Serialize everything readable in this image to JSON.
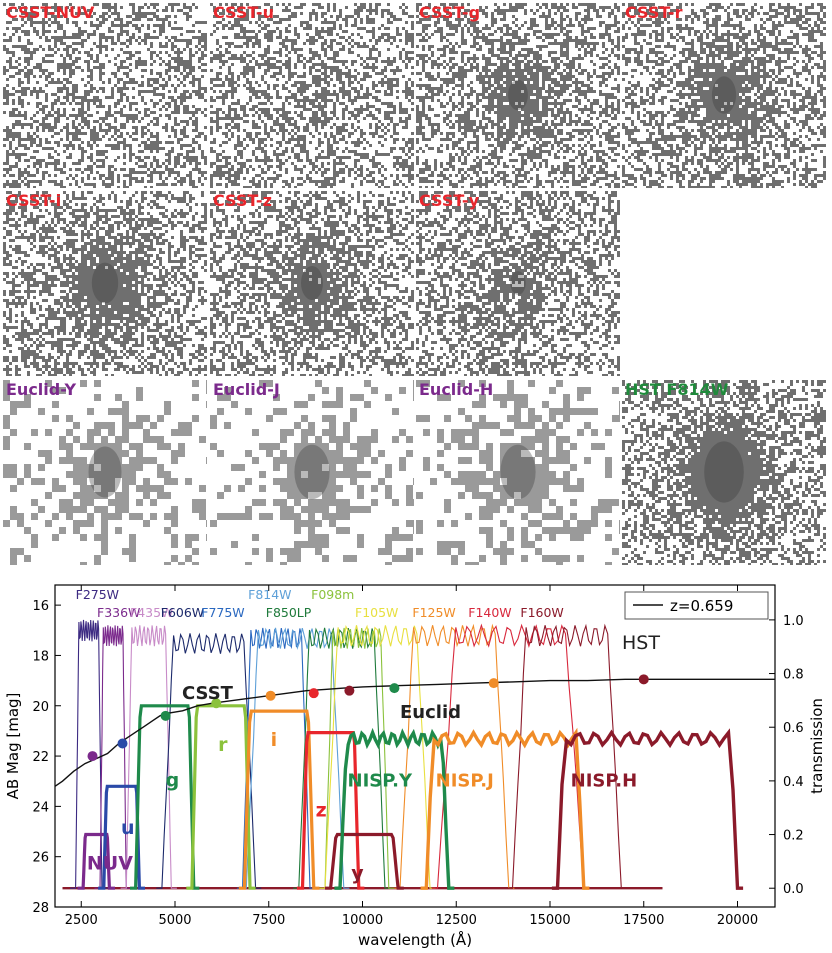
{
  "panels": [
    {
      "label": "CSST-NUV",
      "color": "#e8262c",
      "galaxy": 0.06,
      "blocky": false
    },
    {
      "label": "CSST-u",
      "color": "#e8262c",
      "galaxy": 0.12,
      "blocky": false
    },
    {
      "label": "CSST-g",
      "color": "#e8262c",
      "galaxy": 0.45,
      "blocky": false
    },
    {
      "label": "CSST-r",
      "color": "#e8262c",
      "galaxy": 0.55,
      "blocky": false
    },
    {
      "label": "CSST-i",
      "color": "#e8262c",
      "galaxy": 0.6,
      "blocky": false
    },
    {
      "label": "CSST-z",
      "color": "#e8262c",
      "galaxy": 0.5,
      "blocky": false
    },
    {
      "label": "CSST-y",
      "color": "#e8262c",
      "galaxy": 0.35,
      "blocky": false
    },
    {
      "label": "Euclid-Y",
      "color": "#7b2a8c",
      "galaxy": 0.75,
      "blocky": true
    },
    {
      "label": "Euclid-J",
      "color": "#7b2a8c",
      "galaxy": 0.8,
      "blocky": true
    },
    {
      "label": "Euclid-H",
      "color": "#7b2a8c",
      "galaxy": 0.8,
      "blocky": true
    },
    {
      "label": "HST F814W",
      "color": "#1f8a3b",
      "galaxy": 0.9,
      "blocky": false
    }
  ],
  "chart_data": {
    "type": "line",
    "xlabel": "wavelength (Å)",
    "ylabel": "AB Mag [mag]",
    "ylabel_right": "transmission",
    "xlim": [
      1800,
      21000
    ],
    "ylim": [
      28,
      15.2
    ],
    "ylim_right": [
      -0.07,
      1.13
    ],
    "x_ticks": [
      2500,
      5000,
      7500,
      10000,
      12500,
      15000,
      17500,
      20000
    ],
    "y_ticks": [
      16,
      18,
      20,
      22,
      24,
      26,
      28
    ],
    "y_ticks_right": [
      0.0,
      0.2,
      0.4,
      0.6,
      0.8,
      1.0
    ],
    "legend": {
      "label": "z=0.659",
      "position": "top-right"
    },
    "sed": {
      "name": "z=0.659",
      "color": "#111111",
      "x": [
        1800,
        2000,
        2300,
        2600,
        2900,
        3200,
        3500,
        3800,
        4000,
        4200,
        4400,
        4600,
        4800,
        5200,
        5600,
        6000,
        6500,
        7000,
        7500,
        8000,
        8500,
        9000,
        9500,
        10000,
        11000,
        12000,
        13000,
        14000,
        15000,
        16000,
        17000,
        18000,
        19000,
        20000,
        21000
      ],
      "y": [
        23.2,
        23.0,
        22.6,
        22.3,
        22.1,
        21.9,
        21.5,
        21.2,
        21.0,
        20.8,
        20.6,
        20.4,
        20.3,
        20.2,
        20.0,
        19.9,
        19.8,
        19.7,
        19.6,
        19.5,
        19.4,
        19.35,
        19.3,
        19.25,
        19.2,
        19.15,
        19.1,
        19.05,
        19.0,
        19.0,
        18.95,
        18.95,
        18.95,
        18.95,
        18.95
      ]
    },
    "hst_filters": [
      {
        "name": "F275W",
        "color": "#3c2a82",
        "range": [
          2350,
          3050
        ],
        "peak": 1.0
      },
      {
        "name": "F336W",
        "color": "#7b2a8c",
        "range": [
          3000,
          3700
        ],
        "peak": 0.98
      },
      {
        "name": "F435W",
        "color": "#c88bc8",
        "range": [
          3700,
          4900
        ],
        "peak": 0.98
      },
      {
        "name": "F606W",
        "color": "#1c2a6b",
        "range": [
          4650,
          7150
        ],
        "peak": 0.95
      },
      {
        "name": "F775W",
        "color": "#2a68c0",
        "range": [
          6800,
          8600
        ],
        "peak": 0.97
      },
      {
        "name": "F814W",
        "color": "#5ea0d8",
        "range": [
          6900,
          9500
        ],
        "peak": 0.97
      },
      {
        "name": "F850LP",
        "color": "#1f7a3b",
        "range": [
          8300,
          10600
        ],
        "peak": 0.97
      },
      {
        "name": "F098m",
        "color": "#8bc23c",
        "range": [
          9000,
          10700
        ],
        "peak": 0.97
      },
      {
        "name": "F105W",
        "color": "#e8e040",
        "range": [
          9000,
          11800
        ],
        "peak": 0.98
      },
      {
        "name": "F125W",
        "color": "#f08c28",
        "range": [
          11000,
          13900
        ],
        "peak": 0.98
      },
      {
        "name": "F140W",
        "color": "#d8283c",
        "range": [
          12000,
          15900
        ],
        "peak": 0.98
      },
      {
        "name": "F160W",
        "color": "#8b1a2a",
        "range": [
          14000,
          16900
        ],
        "peak": 0.98
      }
    ],
    "hst_label": "HST",
    "csst_label": "CSST",
    "euclid_label": "Euclid",
    "csst_filters": [
      {
        "name": "NUV",
        "color": "#7b2a8c",
        "range": [
          2550,
          3250
        ],
        "peak": 0.2,
        "label_x": 2650,
        "label_y": 26.5
      },
      {
        "name": "u",
        "color": "#2a4aa8",
        "range": [
          3100,
          4050
        ],
        "peak": 0.38,
        "label_x": 3560,
        "label_y": 25.1
      },
      {
        "name": "g",
        "color": "#1f8a4b",
        "range": [
          3950,
          5500
        ],
        "peak": 0.68,
        "label_x": 4750,
        "label_y": 23.2
      },
      {
        "name": "r",
        "color": "#8bc23c",
        "range": [
          5450,
          7000
        ],
        "peak": 0.68,
        "label_x": 6150,
        "label_y": 21.8
      },
      {
        "name": "i",
        "color": "#f08c28",
        "range": [
          6850,
          8700
        ],
        "peak": 0.66,
        "label_x": 7550,
        "label_y": 21.6
      },
      {
        "name": "z",
        "color": "#e8262c",
        "range": [
          8400,
          9900
        ],
        "peak": 0.58,
        "label_x": 8750,
        "label_y": 24.4
      },
      {
        "name": "y",
        "color": "#8b1a2a",
        "range": [
          9150,
          10950
        ],
        "peak": 0.2,
        "label_x": 9700,
        "label_y": 26.9
      }
    ],
    "nisp_filters": [
      {
        "name": "NISP.Y",
        "color": "#1f8a4b",
        "range": [
          9400,
          12300
        ],
        "peak": 0.58,
        "label_x": 9600,
        "label_y": 23.2
      },
      {
        "name": "NISP.J",
        "color": "#f08c28",
        "range": [
          11700,
          15900
        ],
        "peak": 0.58,
        "label_x": 11950,
        "label_y": 23.2
      },
      {
        "name": "NISP.H",
        "color": "#8b1a2a",
        "range": [
          15200,
          20000
        ],
        "peak": 0.58,
        "label_x": 15550,
        "label_y": 23.2
      }
    ],
    "photometry_points": [
      {
        "x": 2800,
        "y": 22.0,
        "color": "#7b2a8c"
      },
      {
        "x": 3600,
        "y": 21.5,
        "color": "#2a4aa8"
      },
      {
        "x": 4750,
        "y": 20.4,
        "color": "#1f8a4b"
      },
      {
        "x": 6100,
        "y": 19.9,
        "color": "#8bc23c"
      },
      {
        "x": 7550,
        "y": 19.6,
        "color": "#f08c28"
      },
      {
        "x": 8700,
        "y": 19.5,
        "color": "#e8262c"
      },
      {
        "x": 9650,
        "y": 19.4,
        "color": "#8b1a2a"
      },
      {
        "x": 10850,
        "y": 19.3,
        "color": "#1f8a4b"
      },
      {
        "x": 13500,
        "y": 19.1,
        "color": "#f08c28"
      },
      {
        "x": 17500,
        "y": 18.95,
        "color": "#8b1a2a"
      }
    ]
  }
}
